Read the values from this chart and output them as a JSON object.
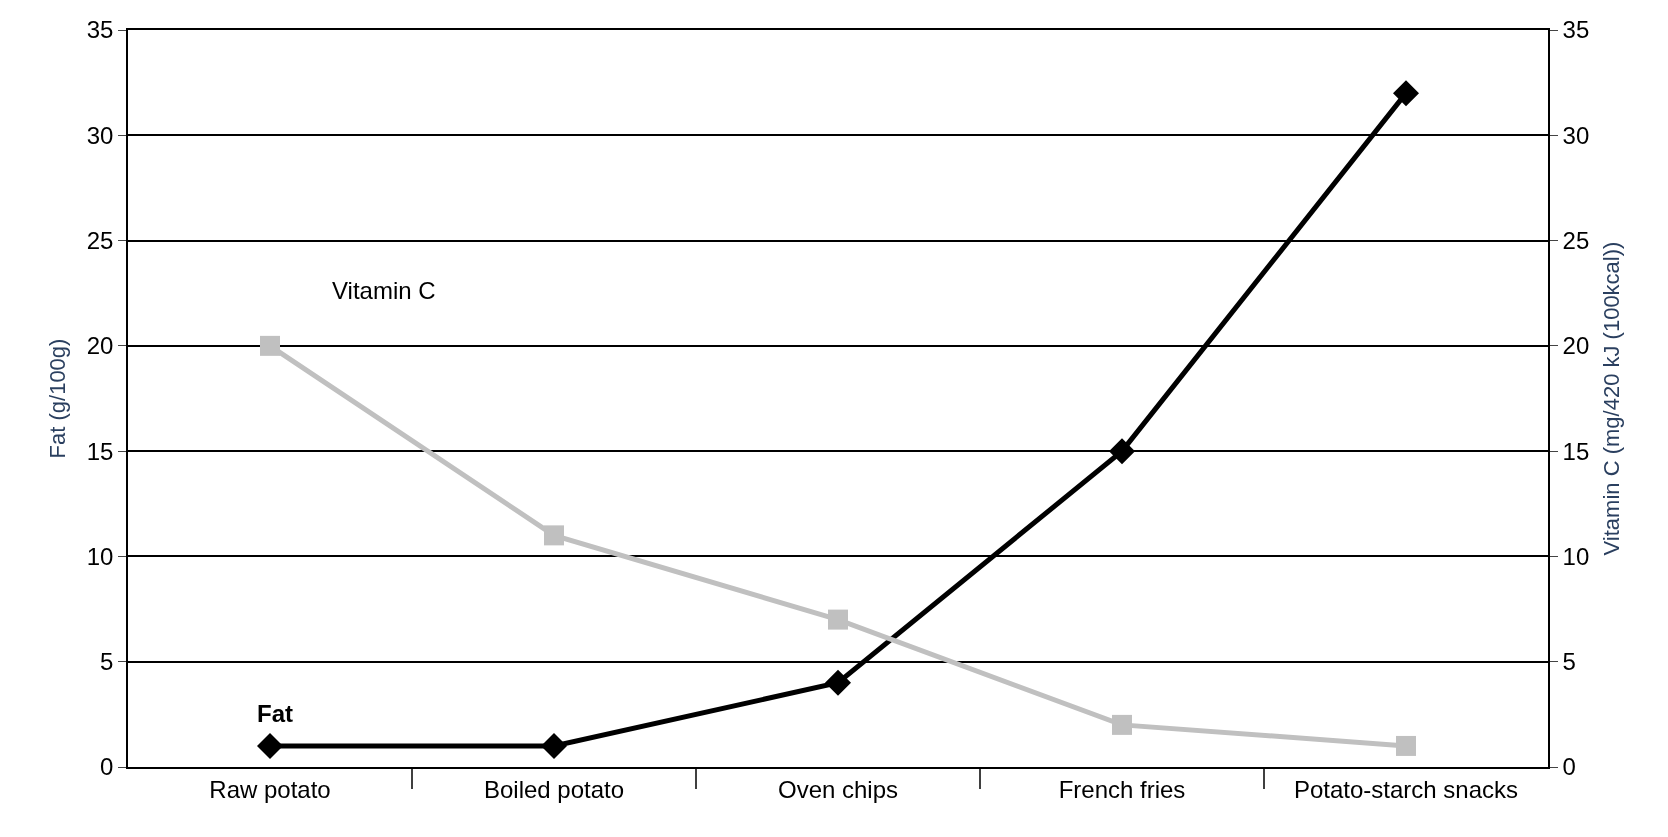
{
  "chart_data": {
    "type": "line",
    "ylabel": "Fat (g/100g)",
    "y2label": "Vitamin C (mg/420 kJ (100kcal))",
    "categories": [
      "Raw potato",
      "Boiled potato",
      "Oven chips",
      "French fries",
      "Potato-starch snacks"
    ],
    "series": [
      {
        "name": "Fat",
        "color": "#000000",
        "values": [
          1,
          1,
          4,
          15,
          32
        ],
        "marker": "diamond"
      },
      {
        "name": "Vitamin C",
        "color": "#c0c0c0",
        "values": [
          20,
          11,
          7,
          2,
          1
        ],
        "marker": "square",
        "axis": "y2"
      }
    ],
    "ylim": [
      0,
      35
    ],
    "yticks": [
      0,
      5,
      10,
      15,
      20,
      25,
      30,
      35
    ],
    "y2lim": [
      0,
      35
    ],
    "y2ticks": [
      0,
      5,
      10,
      15,
      20,
      25,
      30,
      35
    ],
    "grid": "y",
    "legend": false
  }
}
